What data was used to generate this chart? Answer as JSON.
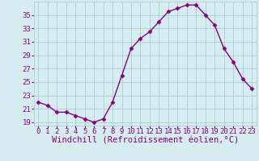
{
  "x": [
    0,
    1,
    2,
    3,
    4,
    5,
    6,
    7,
    8,
    9,
    10,
    11,
    12,
    13,
    14,
    15,
    16,
    17,
    18,
    19,
    20,
    21,
    22,
    23
  ],
  "y": [
    22.0,
    21.5,
    20.5,
    20.5,
    20.0,
    19.5,
    19.0,
    19.5,
    22.0,
    26.0,
    30.0,
    31.5,
    32.5,
    34.0,
    35.5,
    36.0,
    36.5,
    36.5,
    35.0,
    33.5,
    30.0,
    28.0,
    25.5,
    24.0
  ],
  "xlabel": "Windchill (Refroidissement éolien,°C)",
  "ylim": [
    18.5,
    37.0
  ],
  "yticks": [
    19,
    21,
    23,
    25,
    27,
    29,
    31,
    33,
    35
  ],
  "xticks": [
    0,
    1,
    2,
    3,
    4,
    5,
    6,
    7,
    8,
    9,
    10,
    11,
    12,
    13,
    14,
    15,
    16,
    17,
    18,
    19,
    20,
    21,
    22,
    23
  ],
  "line_color": "#880088",
  "marker": "D",
  "marker_size": 2.5,
  "bg_color": "#d5edf0",
  "grid_color": "#aacece",
  "label_color": "#880088",
  "tick_fontsize": 6.5,
  "xlabel_fontsize": 7.5,
  "linewidth": 1.0,
  "xlim": [
    -0.5,
    23.5
  ]
}
